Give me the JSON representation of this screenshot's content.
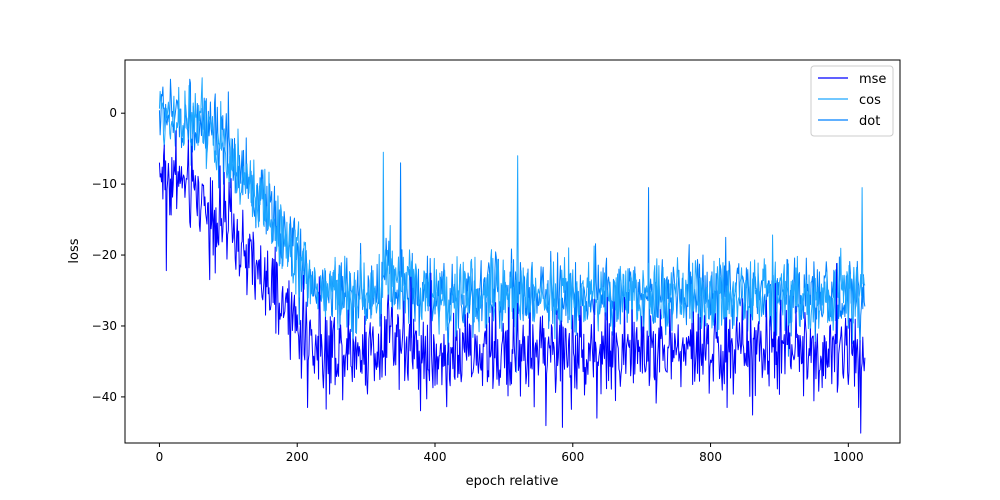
{
  "chart_data": {
    "type": "line",
    "title": "",
    "xlabel": "epoch relative",
    "ylabel": "loss",
    "xlim": [
      -50,
      1075
    ],
    "ylim": [
      -46.5,
      7.5
    ],
    "xticks": [
      0,
      200,
      400,
      600,
      800,
      1000
    ],
    "yticks": [
      0,
      -10,
      -20,
      -30,
      -40
    ],
    "grid": false,
    "legend": "top-right",
    "n_points": 1025,
    "series": [
      {
        "name": "mse",
        "color": "#0000ff",
        "trend": [
          [
            0,
            -8
          ],
          [
            50,
            -11
          ],
          [
            100,
            -16
          ],
          [
            150,
            -24
          ],
          [
            200,
            -30
          ],
          [
            230,
            -33
          ],
          [
            300,
            -33.5
          ],
          [
            320,
            -33
          ],
          [
            330,
            -29
          ],
          [
            340,
            -31
          ],
          [
            380,
            -34
          ],
          [
            500,
            -34
          ],
          [
            510,
            -33
          ],
          [
            540,
            -33.5
          ],
          [
            1024,
            -33.5
          ]
        ],
        "noise": 3.0,
        "extremes": [
          [
            10,
            -22.2
          ],
          [
            215,
            -41.5
          ],
          [
            585,
            -44.3
          ],
          [
            635,
            -43
          ],
          [
            1015,
            -41.5
          ]
        ]
      },
      {
        "name": "cos",
        "color": "#1ea7ff",
        "trend": [
          [
            0,
            0
          ],
          [
            50,
            -1
          ],
          [
            100,
            -6
          ],
          [
            150,
            -13
          ],
          [
            200,
            -20
          ],
          [
            230,
            -25
          ],
          [
            320,
            -26
          ],
          [
            330,
            -22
          ],
          [
            345,
            -24
          ],
          [
            400,
            -25.5
          ],
          [
            1024,
            -26
          ]
        ],
        "noise": 2.5,
        "extremes": [
          [
            62,
            5
          ],
          [
            325,
            -5.5
          ],
          [
            520,
            -6
          ],
          [
            1020,
            -10.5
          ]
        ]
      },
      {
        "name": "dot",
        "color": "#0080ff",
        "trend": [
          [
            0,
            0
          ],
          [
            50,
            -1
          ],
          [
            100,
            -6
          ],
          [
            150,
            -13
          ],
          [
            200,
            -20
          ],
          [
            230,
            -25
          ],
          [
            320,
            -26
          ],
          [
            330,
            -22
          ],
          [
            345,
            -24
          ],
          [
            400,
            -25.5
          ],
          [
            1024,
            -26
          ]
        ],
        "noise": 2.5,
        "extremes": [
          [
            5,
            3.7
          ],
          [
            100,
            3
          ],
          [
            350,
            -7
          ],
          [
            710,
            -10.5
          ]
        ]
      }
    ]
  }
}
